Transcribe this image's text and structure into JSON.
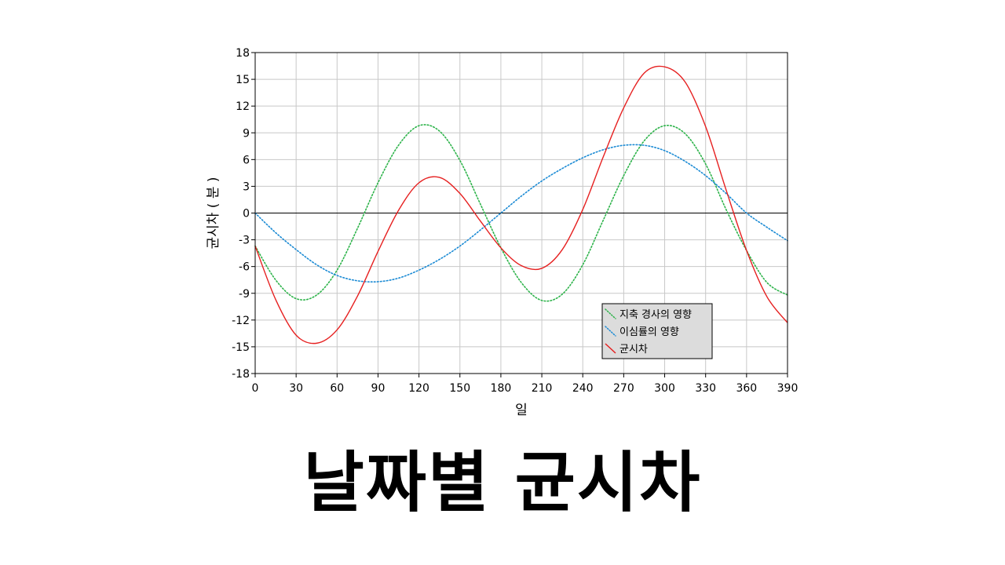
{
  "page_title": "날짜별 균시차",
  "chart_data": {
    "type": "line",
    "title": "",
    "xlabel": "일",
    "ylabel": "균시차 ( 분 )",
    "xlim": [
      0,
      390
    ],
    "ylim": [
      -18,
      18
    ],
    "xticks": [
      0,
      30,
      60,
      90,
      120,
      150,
      180,
      210,
      240,
      270,
      300,
      330,
      360,
      390
    ],
    "yticks": [
      -18,
      -15,
      -12,
      -9,
      -6,
      -3,
      0,
      3,
      6,
      9,
      12,
      15,
      18
    ],
    "grid": true,
    "zero_line": true,
    "legend_position": "bottom-right",
    "x": [
      0,
      15,
      30,
      45,
      60,
      75,
      90,
      105,
      120,
      135,
      150,
      165,
      180,
      195,
      210,
      225,
      240,
      255,
      270,
      285,
      300,
      315,
      330,
      345,
      360,
      375,
      390
    ],
    "series": [
      {
        "name": "지축 경사의 영향",
        "color": "#2db34a",
        "style": "dotted",
        "values": [
          -3.7,
          -7.5,
          -9.6,
          -9.2,
          -6.4,
          -1.7,
          3.4,
          7.6,
          9.8,
          9.2,
          5.9,
          1.0,
          -3.9,
          -7.8,
          -9.8,
          -9.1,
          -5.8,
          -0.8,
          4.2,
          8.1,
          9.8,
          8.9,
          5.5,
          0.4,
          -4.2,
          -7.8,
          -9.2
        ]
      },
      {
        "name": "이심률의 영향",
        "color": "#1a8ad4",
        "style": "dotted",
        "values": [
          0.0,
          -2.2,
          -4.1,
          -5.8,
          -7.0,
          -7.6,
          -7.7,
          -7.3,
          -6.4,
          -5.2,
          -3.7,
          -1.9,
          0.0,
          1.9,
          3.6,
          5.0,
          6.2,
          7.1,
          7.6,
          7.6,
          7.0,
          5.8,
          4.2,
          2.2,
          0.0,
          -1.6,
          -3.1
        ]
      },
      {
        "name": "균시차",
        "color": "#e62020",
        "style": "solid",
        "values": [
          -3.7,
          -9.7,
          -13.7,
          -14.6,
          -13.1,
          -9.3,
          -4.3,
          0.3,
          3.4,
          4.0,
          2.2,
          -0.9,
          -3.9,
          -5.9,
          -6.2,
          -4.1,
          0.4,
          6.3,
          11.8,
          15.7,
          16.4,
          14.7,
          9.7,
          2.6,
          -4.2,
          -9.4,
          -12.3
        ]
      }
    ]
  }
}
